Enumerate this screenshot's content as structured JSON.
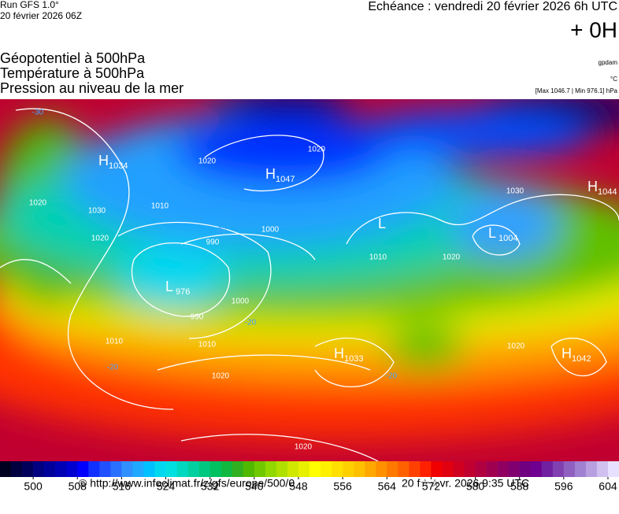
{
  "header": {
    "run": "Run GFS 1.0°",
    "run_date": "20 février 2026 06Z",
    "forecast": "Echéance : vendredi 20 février 2026 6h UTC",
    "offset": "+ 0H",
    "fields": [
      "Géopotentiel à 500hPa",
      "Température à 500hPa",
      "Pression au niveau de la mer"
    ],
    "units": [
      "gpdam",
      "°C",
      "[Max 1046.7 | Min 976.1] hPa"
    ]
  },
  "map": {
    "centers": [
      {
        "symbol": "H",
        "value": "1034"
      },
      {
        "symbol": "H",
        "value": "1047"
      },
      {
        "symbol": "L",
        "value": "976"
      },
      {
        "symbol": "L",
        "value": null
      },
      {
        "symbol": "L",
        "value": "1004"
      },
      {
        "symbol": "H",
        "value": "1044"
      },
      {
        "symbol": "H",
        "value": "1033"
      },
      {
        "symbol": "H",
        "value": "1042"
      }
    ],
    "contour_labels": [
      "1020",
      "1030",
      "1020",
      "1020",
      "1010",
      "990",
      "1000",
      "990",
      "1000",
      "1010",
      "1020",
      "1020",
      "1010",
      "1030",
      "1020",
      "1010",
      "1020",
      "-30",
      "-30",
      "-20",
      "-20",
      "-20",
      "1020"
    ]
  },
  "colorbar": {
    "lim": [
      494,
      606
    ],
    "colors": [
      "#000020",
      "#000040",
      "#00005a",
      "#000080",
      "#00009a",
      "#0000b4",
      "#0000d0",
      "#0000ff",
      "#1030ff",
      "#2050ff",
      "#2a70ff",
      "#3090ff",
      "#20a8ff",
      "#00c0ff",
      "#00d8f0",
      "#00e0e0",
      "#00d8c0",
      "#00d0a0",
      "#00c880",
      "#00c060",
      "#10b840",
      "#30b020",
      "#50b800",
      "#70c800",
      "#90d800",
      "#b0e000",
      "#d0e800",
      "#e8f000",
      "#ffff00",
      "#fff000",
      "#ffe000",
      "#ffd000",
      "#ffc000",
      "#ffa800",
      "#ff9000",
      "#ff7800",
      "#ff6000",
      "#ff4000",
      "#ff2000",
      "#f00000",
      "#e00010",
      "#d00020",
      "#c00030",
      "#b00040",
      "#a00050",
      "#900060",
      "#800070",
      "#70007f",
      "#700090",
      "#7020a0",
      "#8040b0",
      "#9060c0",
      "#a080d0",
      "#b8a0e0",
      "#d0c0f0",
      "#e8e0ff"
    ],
    "ticks": [
      500,
      508,
      516,
      524,
      532,
      540,
      548,
      556,
      564,
      572,
      580,
      588,
      596,
      604
    ]
  },
  "footer": {
    "source": "© http://www.infoclimat.fr/z/gfs/europe/500/0",
    "timestamp": "20 f☆☆vr. 2026  9:35 UTC"
  }
}
